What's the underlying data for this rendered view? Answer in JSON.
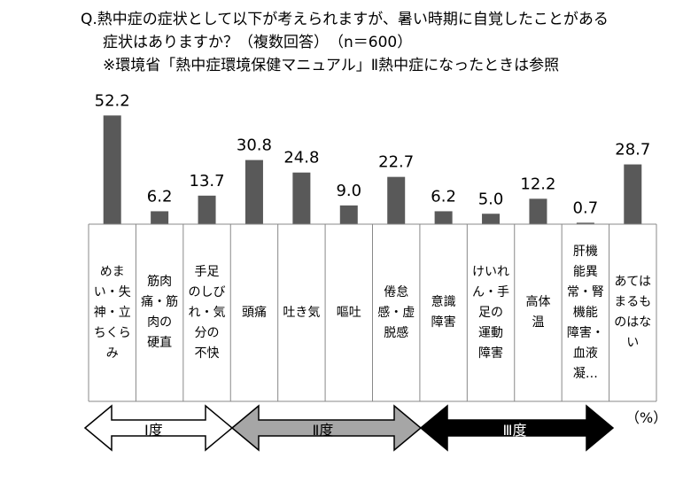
{
  "question": {
    "line1": "Q.熱中症の症状として以下が考えられますが、暑い時期に自覚したことがある",
    "line2": "症状はありますか？（複数回答）　（n＝600）",
    "line3": "※環境省「熱中症環境保健マニュアル」Ⅱ熱中症になったときは参照"
  },
  "chart_data": {
    "type": "bar",
    "categories": [
      "めまい・失神・立ちくらみ",
      "筋肉痛・筋肉の硬直",
      "手足のしびれ・気分の不快",
      "頭痛",
      "吐き気",
      "嘔吐",
      "倦怠感・虚脱感",
      "意識障害",
      "けいれん・手足の運動障害",
      "高体温",
      "肝機能異常・腎機能障害・血液凝…",
      "あてはまるものはない"
    ],
    "category_lines": [
      "めま\nい・失\n神・立\nちくら\nみ",
      "筋肉\n痛・筋\n肉の\n硬直",
      "手足\nのしび\nれ・気\n分の\n不快",
      "頭痛",
      "吐き気",
      "嘔吐",
      "倦怠\n感・虚\n脱感",
      "意識\n障害",
      "けいれ\nん・手\n足の\n運動\n障害",
      "高体\n温",
      "肝機\n能異\n常・腎\n機能\n障害・\n血液\n凝…",
      "あては\nまるも\nのはな\nい"
    ],
    "values": [
      52.2,
      6.2,
      13.7,
      30.8,
      24.8,
      9.0,
      22.7,
      6.2,
      5.0,
      12.2,
      0.7,
      28.7
    ],
    "value_labels": [
      "52.2",
      "6.2",
      "13.7",
      "30.8",
      "24.8",
      "9.0",
      "22.7",
      "6.2",
      "5.0",
      "12.2",
      "0.7",
      "28.7"
    ],
    "unit": "（%）",
    "bar_color": "#595959",
    "severity": [
      {
        "label": "Ⅰ度",
        "fill": "#ffffff",
        "text_color": "#000000"
      },
      {
        "label": "Ⅱ度",
        "fill": "#a6a6a6",
        "text_color": "#000000"
      },
      {
        "label": "Ⅲ度",
        "fill": "#000000",
        "text_color": "#ffffff"
      }
    ]
  }
}
